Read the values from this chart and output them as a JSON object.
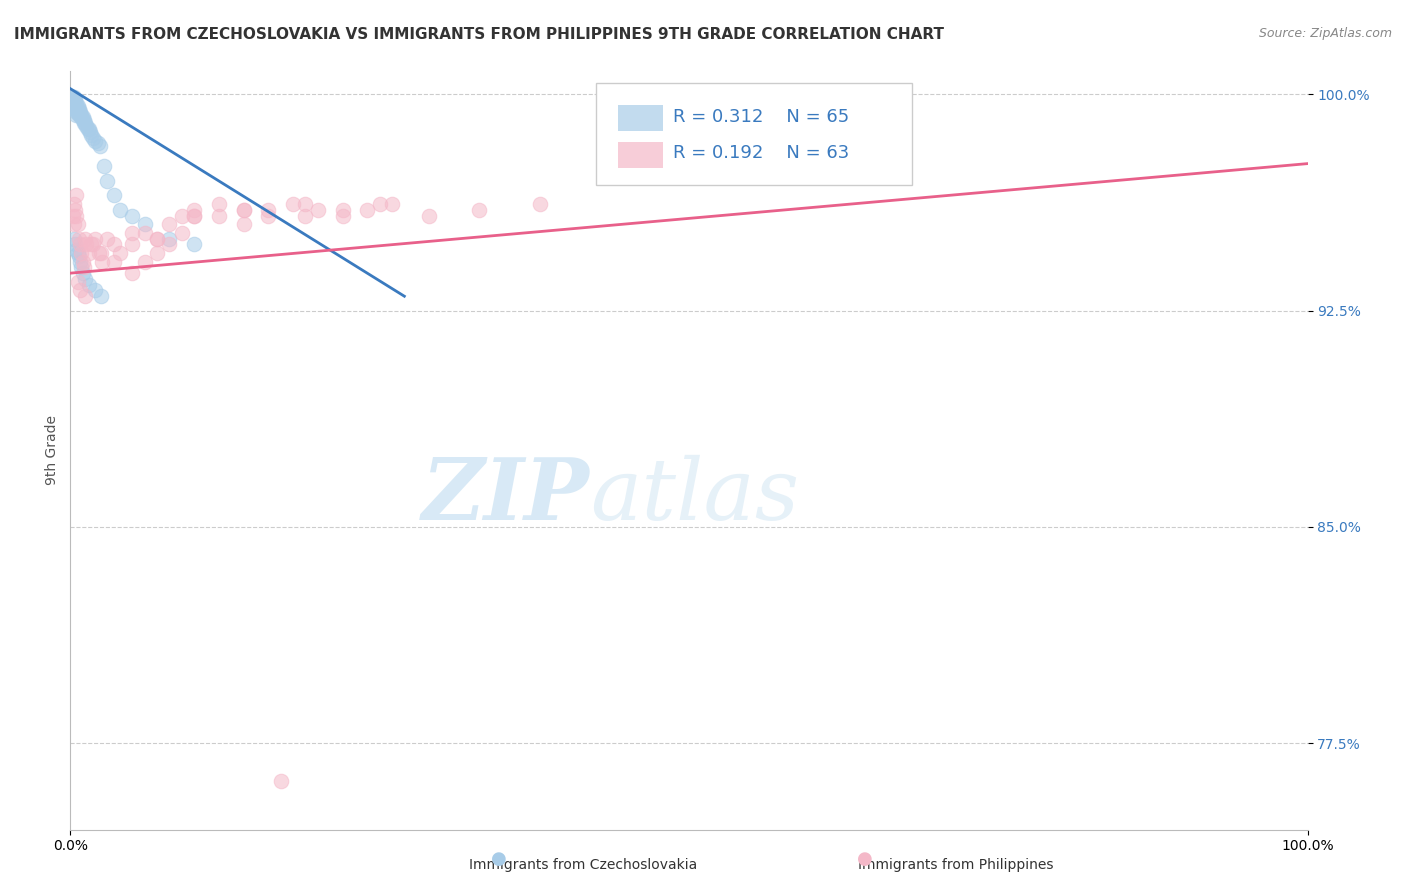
{
  "title": "IMMIGRANTS FROM CZECHOSLOVAKIA VS IMMIGRANTS FROM PHILIPPINES 9TH GRADE CORRELATION CHART",
  "source_text": "Source: ZipAtlas.com",
  "ylabel": "9th Grade",
  "legend_blue_r": "R = 0.312",
  "legend_blue_n": "N = 65",
  "legend_pink_r": "R = 0.192",
  "legend_pink_n": "N = 63",
  "legend_blue_label": "Immigrants from Czechoslovakia",
  "legend_pink_label": "Immigrants from Philippines",
  "blue_color": "#a8cce8",
  "pink_color": "#f4b8c8",
  "blue_line_color": "#3a7abf",
  "pink_line_color": "#e8608a",
  "ymin": 0.745,
  "ymax": 1.008,
  "xmin": 0.0,
  "xmax": 1.0,
  "yticks": [
    0.775,
    0.85,
    0.925,
    1.0
  ],
  "ytick_labels": [
    "77.5%",
    "85.0%",
    "92.5%",
    "100.0%"
  ],
  "blue_x": [
    0.001,
    0.001,
    0.001,
    0.002,
    0.002,
    0.002,
    0.002,
    0.003,
    0.003,
    0.003,
    0.003,
    0.003,
    0.004,
    0.004,
    0.004,
    0.004,
    0.005,
    0.005,
    0.005,
    0.005,
    0.005,
    0.006,
    0.006,
    0.006,
    0.007,
    0.007,
    0.007,
    0.008,
    0.008,
    0.009,
    0.009,
    0.01,
    0.01,
    0.011,
    0.011,
    0.012,
    0.013,
    0.014,
    0.015,
    0.016,
    0.017,
    0.018,
    0.02,
    0.022,
    0.024,
    0.027,
    0.03,
    0.035,
    0.04,
    0.05,
    0.06,
    0.08,
    0.1,
    0.003,
    0.004,
    0.005,
    0.006,
    0.007,
    0.008,
    0.009,
    0.01,
    0.012,
    0.015,
    0.02,
    0.025
  ],
  "blue_y": [
    0.999,
    0.998,
    0.997,
    0.999,
    0.998,
    0.997,
    0.996,
    0.999,
    0.998,
    0.997,
    0.996,
    0.995,
    0.998,
    0.997,
    0.996,
    0.995,
    0.997,
    0.996,
    0.995,
    0.994,
    0.993,
    0.996,
    0.995,
    0.994,
    0.995,
    0.994,
    0.993,
    0.994,
    0.993,
    0.993,
    0.992,
    0.992,
    0.991,
    0.991,
    0.99,
    0.99,
    0.989,
    0.988,
    0.988,
    0.987,
    0.986,
    0.985,
    0.984,
    0.983,
    0.982,
    0.975,
    0.97,
    0.965,
    0.96,
    0.958,
    0.955,
    0.95,
    0.948,
    0.95,
    0.948,
    0.946,
    0.945,
    0.944,
    0.942,
    0.94,
    0.938,
    0.936,
    0.934,
    0.932,
    0.93
  ],
  "pink_x": [
    0.002,
    0.003,
    0.003,
    0.004,
    0.005,
    0.005,
    0.006,
    0.007,
    0.008,
    0.009,
    0.01,
    0.011,
    0.012,
    0.013,
    0.015,
    0.017,
    0.02,
    0.023,
    0.026,
    0.03,
    0.035,
    0.04,
    0.05,
    0.06,
    0.07,
    0.08,
    0.09,
    0.1,
    0.12,
    0.14,
    0.16,
    0.19,
    0.22,
    0.25,
    0.29,
    0.33,
    0.38,
    0.006,
    0.008,
    0.012,
    0.018,
    0.025,
    0.035,
    0.05,
    0.07,
    0.1,
    0.14,
    0.19,
    0.05,
    0.06,
    0.07,
    0.08,
    0.09,
    0.1,
    0.12,
    0.14,
    0.16,
    0.18,
    0.2,
    0.22,
    0.24,
    0.26,
    0.17
  ],
  "pink_y": [
    0.958,
    0.962,
    0.955,
    0.96,
    0.965,
    0.958,
    0.955,
    0.95,
    0.948,
    0.945,
    0.942,
    0.94,
    0.95,
    0.948,
    0.945,
    0.948,
    0.95,
    0.945,
    0.942,
    0.95,
    0.948,
    0.945,
    0.948,
    0.952,
    0.95,
    0.955,
    0.958,
    0.96,
    0.958,
    0.955,
    0.96,
    0.958,
    0.96,
    0.962,
    0.958,
    0.96,
    0.962,
    0.935,
    0.932,
    0.93,
    0.948,
    0.945,
    0.942,
    0.952,
    0.95,
    0.958,
    0.96,
    0.962,
    0.938,
    0.942,
    0.945,
    0.948,
    0.952,
    0.958,
    0.962,
    0.96,
    0.958,
    0.962,
    0.96,
    0.958,
    0.96,
    0.962,
    0.762
  ],
  "blue_trendline_x0": 0.0,
  "blue_trendline_y0": 1.002,
  "blue_trendline_x1": 0.27,
  "blue_trendline_y1": 0.93,
  "pink_trendline_x0": 0.0,
  "pink_trendline_y0": 0.938,
  "pink_trendline_x1": 1.0,
  "pink_trendline_y1": 0.976,
  "watermark_zip": "ZIP",
  "watermark_atlas": "atlas",
  "background_color": "#ffffff",
  "title_fontsize": 11,
  "axis_label_fontsize": 10,
  "tick_fontsize": 10,
  "legend_fontsize": 13
}
